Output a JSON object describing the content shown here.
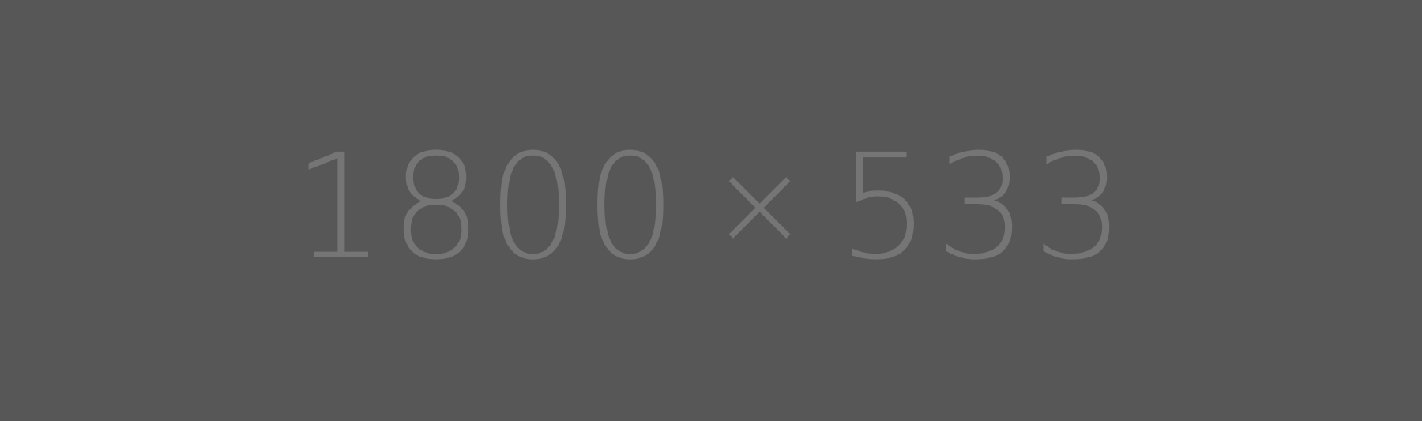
{
  "placeholder": {
    "width_text": "1800",
    "times_sign": "×",
    "height_text": "533"
  },
  "colors": {
    "background": "#575757",
    "text": "#757575"
  }
}
